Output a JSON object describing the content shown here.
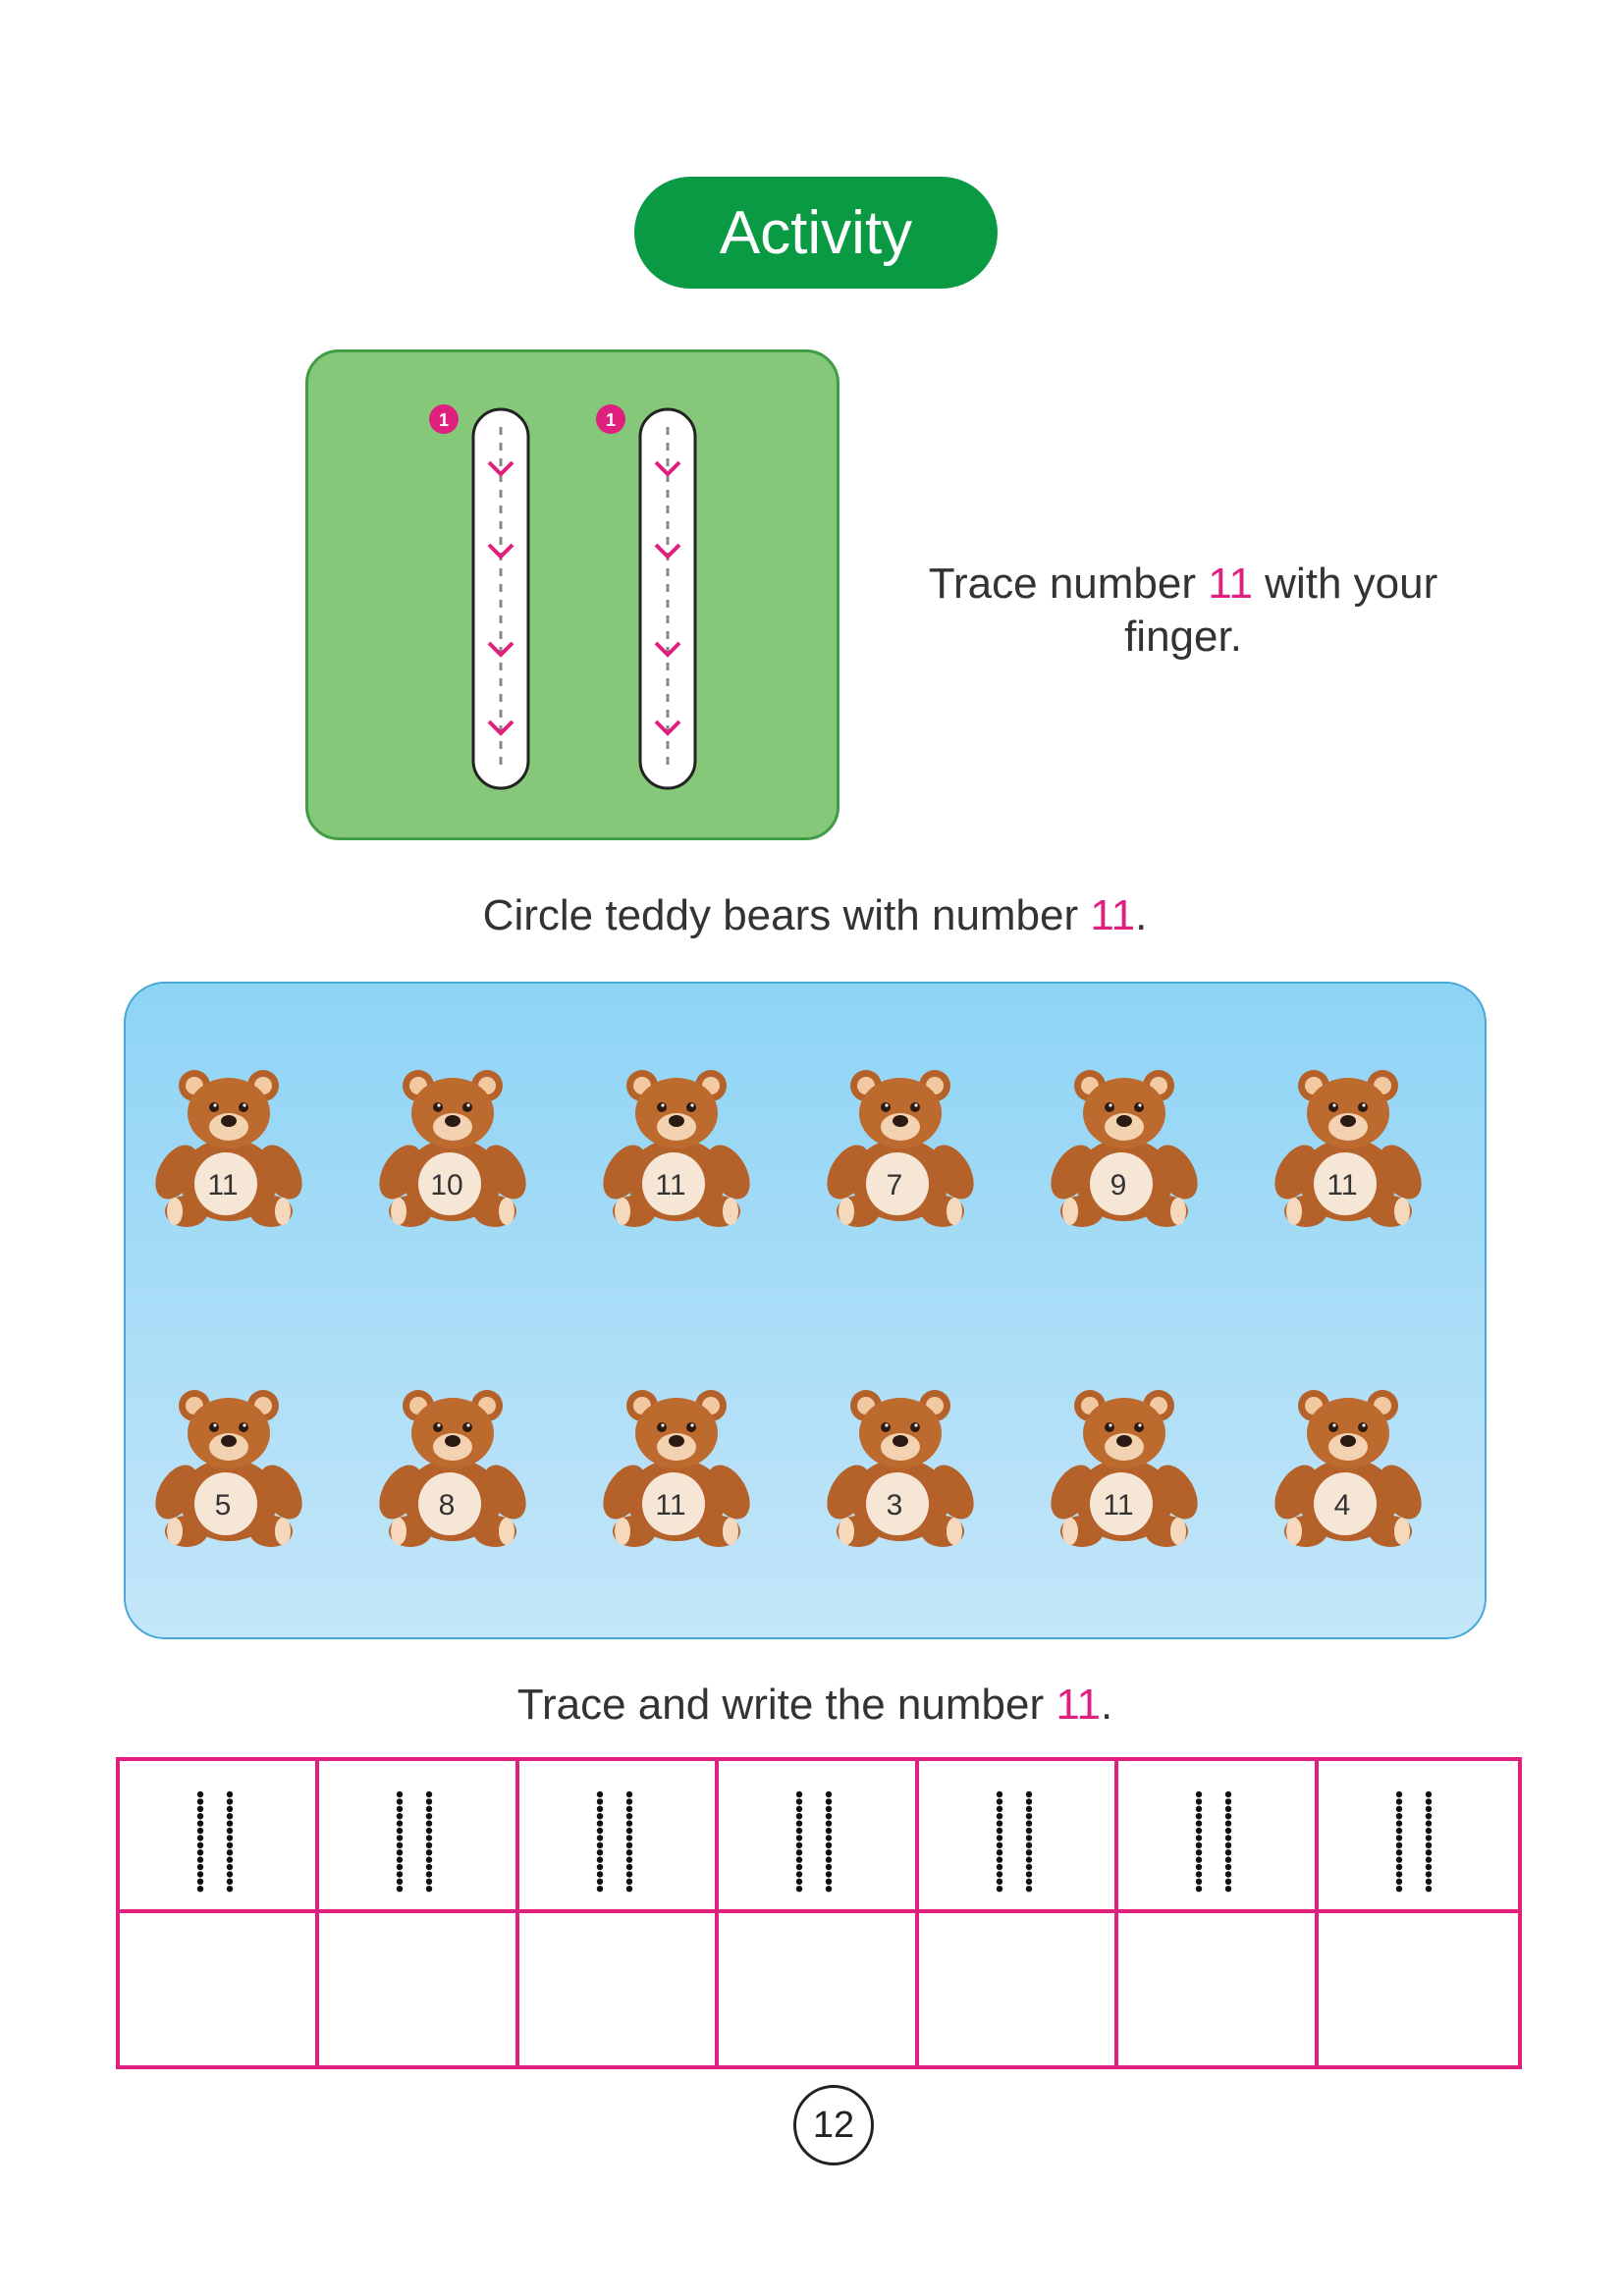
{
  "header": {
    "title": "Activity"
  },
  "trace_activity": {
    "prefix": "Trace number ",
    "number": "11",
    "suffix": " with your finger.",
    "start_markers": [
      "1",
      "1"
    ]
  },
  "circle_activity": {
    "prefix": "Circle teddy bears with number ",
    "number": "11",
    "suffix": "."
  },
  "bears": [
    [
      "11",
      "10",
      "11",
      "7",
      "9",
      "11"
    ],
    [
      "5",
      "8",
      "11",
      "3",
      "11",
      "4"
    ]
  ],
  "write_activity": {
    "prefix": "Trace and write the number ",
    "number": "11",
    "suffix": "."
  },
  "footer": {
    "page_number": "12"
  },
  "colors": {
    "activity_green": "#0a9a44",
    "trace_box_green": "#86c879",
    "highlight_pink": "#e0207f",
    "sky_blue": "#8ed4f5",
    "bear_brown": "#b5612a"
  }
}
